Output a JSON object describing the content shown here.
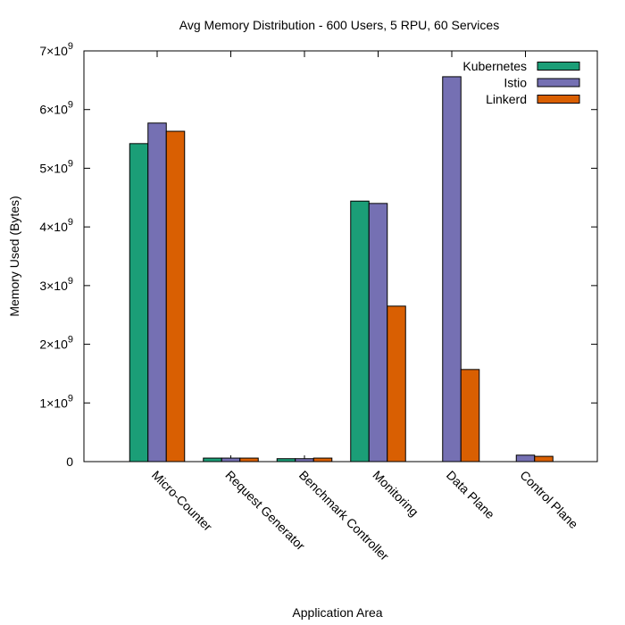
{
  "chart_data": {
    "type": "bar",
    "title": "Avg Memory Distribution - 600 Users, 5 RPU, 60 Services",
    "xlabel": "Application Area",
    "ylabel": "Memory Used (Bytes)",
    "ylim": [
      0,
      7000000000
    ],
    "yticks": [
      {
        "value": 0,
        "mantissa": "0",
        "exp": ""
      },
      {
        "value": 1000000000,
        "mantissa": "1×10",
        "exp": "9"
      },
      {
        "value": 2000000000,
        "mantissa": "2×10",
        "exp": "9"
      },
      {
        "value": 3000000000,
        "mantissa": "3×10",
        "exp": "9"
      },
      {
        "value": 4000000000,
        "mantissa": "4×10",
        "exp": "9"
      },
      {
        "value": 5000000000,
        "mantissa": "5×10",
        "exp": "9"
      },
      {
        "value": 6000000000,
        "mantissa": "6×10",
        "exp": "9"
      },
      {
        "value": 7000000000,
        "mantissa": "7×10",
        "exp": "9"
      }
    ],
    "categories": [
      "Micro-Counter",
      "Request Generator",
      "Benchmark Controller",
      "Monitoring",
      "Data Plane",
      "Control Plane"
    ],
    "series": [
      {
        "name": "Kubernetes",
        "color": "#1b9e77",
        "values": [
          5420000000,
          60000000,
          50000000,
          4440000000,
          0,
          0
        ]
      },
      {
        "name": "Istio",
        "color": "#7570b3",
        "values": [
          5770000000,
          60000000,
          50000000,
          4400000000,
          6560000000,
          110000000
        ]
      },
      {
        "name": "Linkerd",
        "color": "#d95f02",
        "values": [
          5630000000,
          60000000,
          60000000,
          2650000000,
          1570000000,
          90000000
        ]
      }
    ],
    "legend_position": "top-right",
    "grid": false
  }
}
